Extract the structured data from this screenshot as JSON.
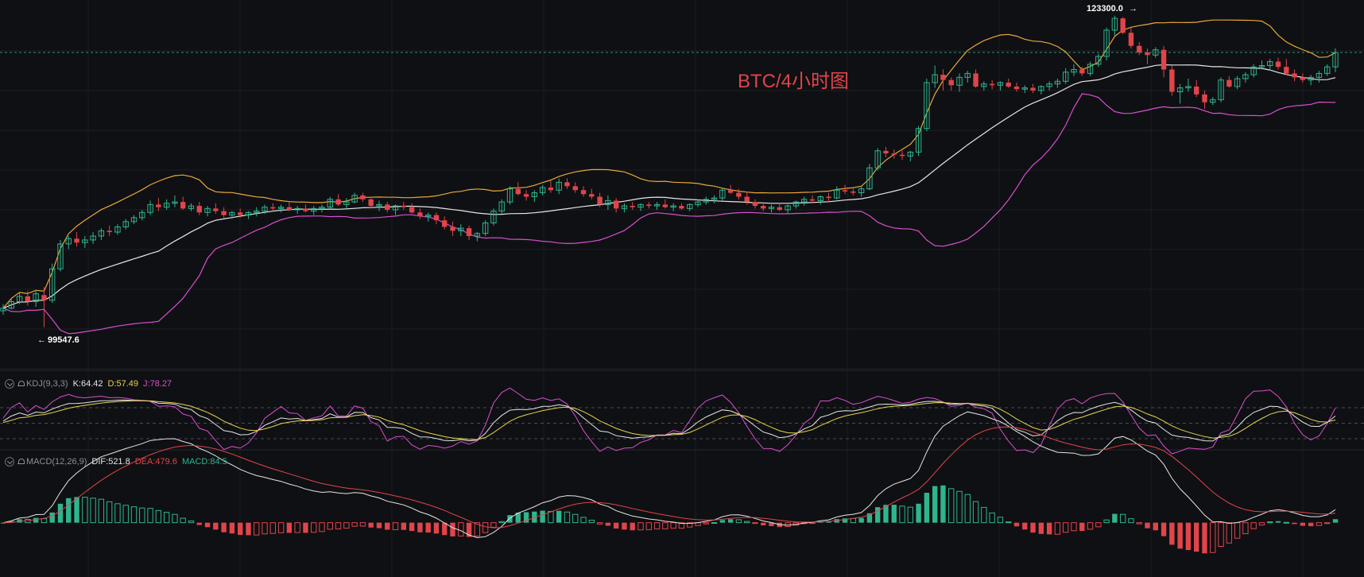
{
  "watermark": "BTC/4小时图",
  "price_labels": {
    "high": "123300.0",
    "low": "99547.6"
  },
  "kdj": {
    "label": "KDJ(9,3,3)",
    "k": "K:64.42",
    "d": "D:57.49",
    "j": "J:78.27"
  },
  "macd": {
    "label": "MACD(12,26,9)",
    "dif": "DIF:521.8",
    "dea": "DEA:479.6",
    "macd": "MACD:84.5"
  },
  "colors": {
    "up": "#2fb58e",
    "down": "#e0454a",
    "background": "#0f1013",
    "boll_upper": "#e8a73a",
    "boll_mid": "#e6e6e6",
    "boll_lower": "#d94fd0"
  },
  "chart_data": {
    "type": "candlestick",
    "title": "BTC/4小时图",
    "price_range": [
      96500,
      124500
    ],
    "candles": [
      [
        100800,
        101300,
        100500,
        101000
      ],
      [
        101000,
        101700,
        100900,
        101500
      ],
      [
        101500,
        102200,
        101300,
        101900
      ],
      [
        101900,
        102300,
        101200,
        101500
      ],
      [
        101500,
        102400,
        101100,
        102100
      ],
      [
        102000,
        102600,
        99547.6,
        101600
      ],
      [
        101600,
        104400,
        101400,
        104000
      ],
      [
        104000,
        106200,
        103800,
        105900
      ],
      [
        105900,
        106500,
        105500,
        106300
      ],
      [
        106300,
        106800,
        105700,
        106000
      ],
      [
        106000,
        106500,
        105600,
        106200
      ],
      [
        106200,
        106800,
        105900,
        106500
      ],
      [
        106500,
        107100,
        106200,
        106900
      ],
      [
        106900,
        107300,
        106500,
        106800
      ],
      [
        106800,
        107400,
        106600,
        107200
      ],
      [
        107200,
        107800,
        107000,
        107600
      ],
      [
        107600,
        108100,
        107400,
        107900
      ],
      [
        107900,
        108500,
        107700,
        108300
      ],
      [
        108300,
        109200,
        108100,
        108900
      ],
      [
        108900,
        109400,
        108400,
        108700
      ],
      [
        108700,
        109300,
        108500,
        109000
      ],
      [
        109000,
        109600,
        108700,
        109100
      ],
      [
        109100,
        109500,
        108500,
        108600
      ],
      [
        108600,
        109000,
        108400,
        108800
      ],
      [
        108800,
        109100,
        108100,
        108300
      ],
      [
        108300,
        108800,
        108000,
        108600
      ],
      [
        108600,
        109000,
        108200,
        108400
      ],
      [
        108400,
        108700,
        107900,
        108100
      ],
      [
        108100,
        108400,
        107800,
        108300
      ],
      [
        108300,
        108600,
        107900,
        108100
      ],
      [
        108100,
        108400,
        107800,
        108300
      ],
      [
        108300,
        108700,
        108000,
        108400
      ],
      [
        108400,
        108900,
        108200,
        108700
      ],
      [
        108700,
        109000,
        108400,
        108600
      ],
      [
        108600,
        108900,
        108300,
        108700
      ],
      [
        108700,
        109100,
        108400,
        108500
      ],
      [
        108500,
        108800,
        108200,
        108600
      ],
      [
        108600,
        108900,
        108300,
        108400
      ],
      [
        108400,
        108800,
        108100,
        108600
      ],
      [
        108600,
        108900,
        108300,
        108700
      ],
      [
        108700,
        109500,
        108500,
        109300
      ],
      [
        109300,
        109700,
        108800,
        108900
      ],
      [
        108900,
        109400,
        108600,
        109100
      ],
      [
        109100,
        109800,
        109000,
        109600
      ],
      [
        109600,
        109800,
        109100,
        109300
      ],
      [
        109300,
        109500,
        108600,
        108800
      ],
      [
        108800,
        109200,
        108400,
        108900
      ],
      [
        108900,
        109100,
        108300,
        108500
      ],
      [
        108500,
        108900,
        108100,
        108800
      ],
      [
        108800,
        109100,
        108500,
        108700
      ],
      [
        108700,
        109000,
        108200,
        108300
      ],
      [
        108300,
        108600,
        107800,
        108000
      ],
      [
        108000,
        108300,
        107600,
        108100
      ],
      [
        108100,
        108300,
        107400,
        107700
      ],
      [
        107700,
        108000,
        107000,
        107200
      ],
      [
        107200,
        107600,
        106500,
        106900
      ],
      [
        106900,
        107400,
        106500,
        107100
      ],
      [
        107100,
        107300,
        106200,
        106500
      ],
      [
        106500,
        106800,
        106100,
        106700
      ],
      [
        106700,
        107700,
        106500,
        107500
      ],
      [
        107500,
        108600,
        107300,
        108400
      ],
      [
        108400,
        109300,
        108200,
        109100
      ],
      [
        109100,
        110300,
        108900,
        110100
      ],
      [
        110100,
        110600,
        109600,
        109700
      ],
      [
        109700,
        110000,
        109200,
        109500
      ],
      [
        109500,
        110000,
        109100,
        109800
      ],
      [
        109800,
        110400,
        109600,
        110200
      ],
      [
        110200,
        110700,
        109800,
        110000
      ],
      [
        110000,
        110900,
        109700,
        110600
      ],
      [
        110600,
        110900,
        110100,
        110300
      ],
      [
        110300,
        110600,
        109800,
        110000
      ],
      [
        110000,
        110300,
        109500,
        109700
      ],
      [
        109700,
        110100,
        109300,
        109500
      ],
      [
        109500,
        109800,
        108700,
        108900
      ],
      [
        108900,
        109600,
        108500,
        109200
      ],
      [
        109200,
        109400,
        108300,
        108600
      ],
      [
        108600,
        109000,
        108300,
        108800
      ],
      [
        108800,
        109100,
        108500,
        108700
      ],
      [
        108700,
        109000,
        108400,
        108900
      ],
      [
        108900,
        109100,
        108600,
        108800
      ],
      [
        108800,
        109100,
        108500,
        108900
      ],
      [
        108900,
        109300,
        108600,
        108700
      ],
      [
        108700,
        109000,
        108400,
        108800
      ],
      [
        108800,
        109000,
        108500,
        108600
      ],
      [
        108600,
        109000,
        108400,
        108900
      ],
      [
        108900,
        109300,
        108700,
        109100
      ],
      [
        109100,
        109500,
        108900,
        109300
      ],
      [
        109300,
        109600,
        109000,
        109400
      ],
      [
        109400,
        110200,
        109200,
        110000
      ],
      [
        110000,
        110400,
        109700,
        109800
      ],
      [
        109800,
        110100,
        109300,
        109500
      ],
      [
        109500,
        109900,
        108900,
        109100
      ],
      [
        109100,
        109300,
        108600,
        108800
      ],
      [
        108800,
        109100,
        108400,
        108600
      ],
      [
        108600,
        108900,
        108300,
        108700
      ],
      [
        108700,
        109000,
        108400,
        108500
      ],
      [
        108500,
        108900,
        108200,
        108800
      ],
      [
        108800,
        109200,
        108600,
        109100
      ],
      [
        109100,
        109500,
        108800,
        109300
      ],
      [
        109300,
        109600,
        109000,
        109200
      ],
      [
        109200,
        109600,
        108900,
        109500
      ],
      [
        109500,
        109800,
        109100,
        109400
      ],
      [
        109400,
        110300,
        109300,
        110000
      ],
      [
        110000,
        110400,
        109700,
        109900
      ],
      [
        109900,
        110200,
        109600,
        109800
      ],
      [
        109800,
        110300,
        109500,
        110100
      ],
      [
        110100,
        112000,
        110000,
        111700
      ],
      [
        111700,
        113200,
        111500,
        113000
      ],
      [
        113000,
        113300,
        112500,
        112800
      ],
      [
        112800,
        113100,
        112400,
        112700
      ],
      [
        112700,
        113000,
        112300,
        112600
      ],
      [
        112600,
        113000,
        112200,
        112900
      ],
      [
        112900,
        114900,
        112600,
        114700
      ],
      [
        114700,
        118500,
        114500,
        118200
      ],
      [
        118200,
        119500,
        117800,
        118800
      ],
      [
        118800,
        119200,
        117600,
        118400
      ],
      [
        118400,
        118600,
        117600,
        118000
      ],
      [
        118000,
        118900,
        117500,
        118600
      ],
      [
        118600,
        119100,
        118200,
        118900
      ],
      [
        118900,
        119200,
        117800,
        117900
      ],
      [
        117900,
        118300,
        117600,
        118100
      ],
      [
        118100,
        118400,
        117700,
        118000
      ],
      [
        118000,
        118300,
        117600,
        118200
      ],
      [
        118200,
        118500,
        117800,
        117900
      ],
      [
        117900,
        118200,
        117500,
        117700
      ],
      [
        117700,
        118000,
        117400,
        117800
      ],
      [
        117800,
        118100,
        117400,
        117600
      ],
      [
        117600,
        118000,
        117300,
        117900
      ],
      [
        117900,
        118300,
        117600,
        118100
      ],
      [
        118100,
        118500,
        117800,
        118300
      ],
      [
        118300,
        119300,
        118100,
        119000
      ],
      [
        119000,
        119600,
        118700,
        119200
      ],
      [
        119200,
        119400,
        118700,
        118900
      ],
      [
        118900,
        119800,
        118700,
        119600
      ],
      [
        119600,
        120400,
        119400,
        120200
      ],
      [
        120200,
        122400,
        119900,
        122200
      ],
      [
        122200,
        123300,
        121800,
        123100
      ],
      [
        123100,
        123200,
        121900,
        122000
      ],
      [
        122000,
        122400,
        120800,
        121000
      ],
      [
        121000,
        121300,
        120300,
        120500
      ],
      [
        120500,
        120800,
        119600,
        120300
      ],
      [
        120300,
        120900,
        120100,
        120700
      ],
      [
        120700,
        121000,
        118600,
        119200
      ],
      [
        119200,
        119500,
        117200,
        117500
      ],
      [
        117500,
        118100,
        116600,
        117800
      ],
      [
        117800,
        118500,
        117500,
        117900
      ],
      [
        117900,
        118400,
        117100,
        117300
      ],
      [
        117300,
        117600,
        116200,
        116700
      ],
      [
        116700,
        117100,
        116500,
        116900
      ],
      [
        116900,
        118600,
        116700,
        118400
      ],
      [
        118400,
        118700,
        117800,
        117900
      ],
      [
        117900,
        118700,
        117700,
        118500
      ],
      [
        118500,
        119000,
        118200,
        118800
      ],
      [
        118800,
        119600,
        118600,
        119400
      ],
      [
        119400,
        119900,
        119200,
        119500
      ],
      [
        119500,
        120000,
        119100,
        119800
      ],
      [
        119800,
        120100,
        119200,
        119400
      ],
      [
        119400,
        120000,
        118800,
        118900
      ],
      [
        118900,
        119200,
        118300,
        118600
      ],
      [
        118600,
        118900,
        118200,
        118400
      ],
      [
        118400,
        118800,
        118000,
        118600
      ],
      [
        118600,
        119100,
        118200,
        118900
      ],
      [
        118900,
        119600,
        118700,
        119400
      ],
      [
        119400,
        120800,
        119000,
        120500
      ]
    ],
    "kdj_range": [
      0,
      100
    ],
    "macd_range": [
      -1200,
      1100
    ]
  }
}
